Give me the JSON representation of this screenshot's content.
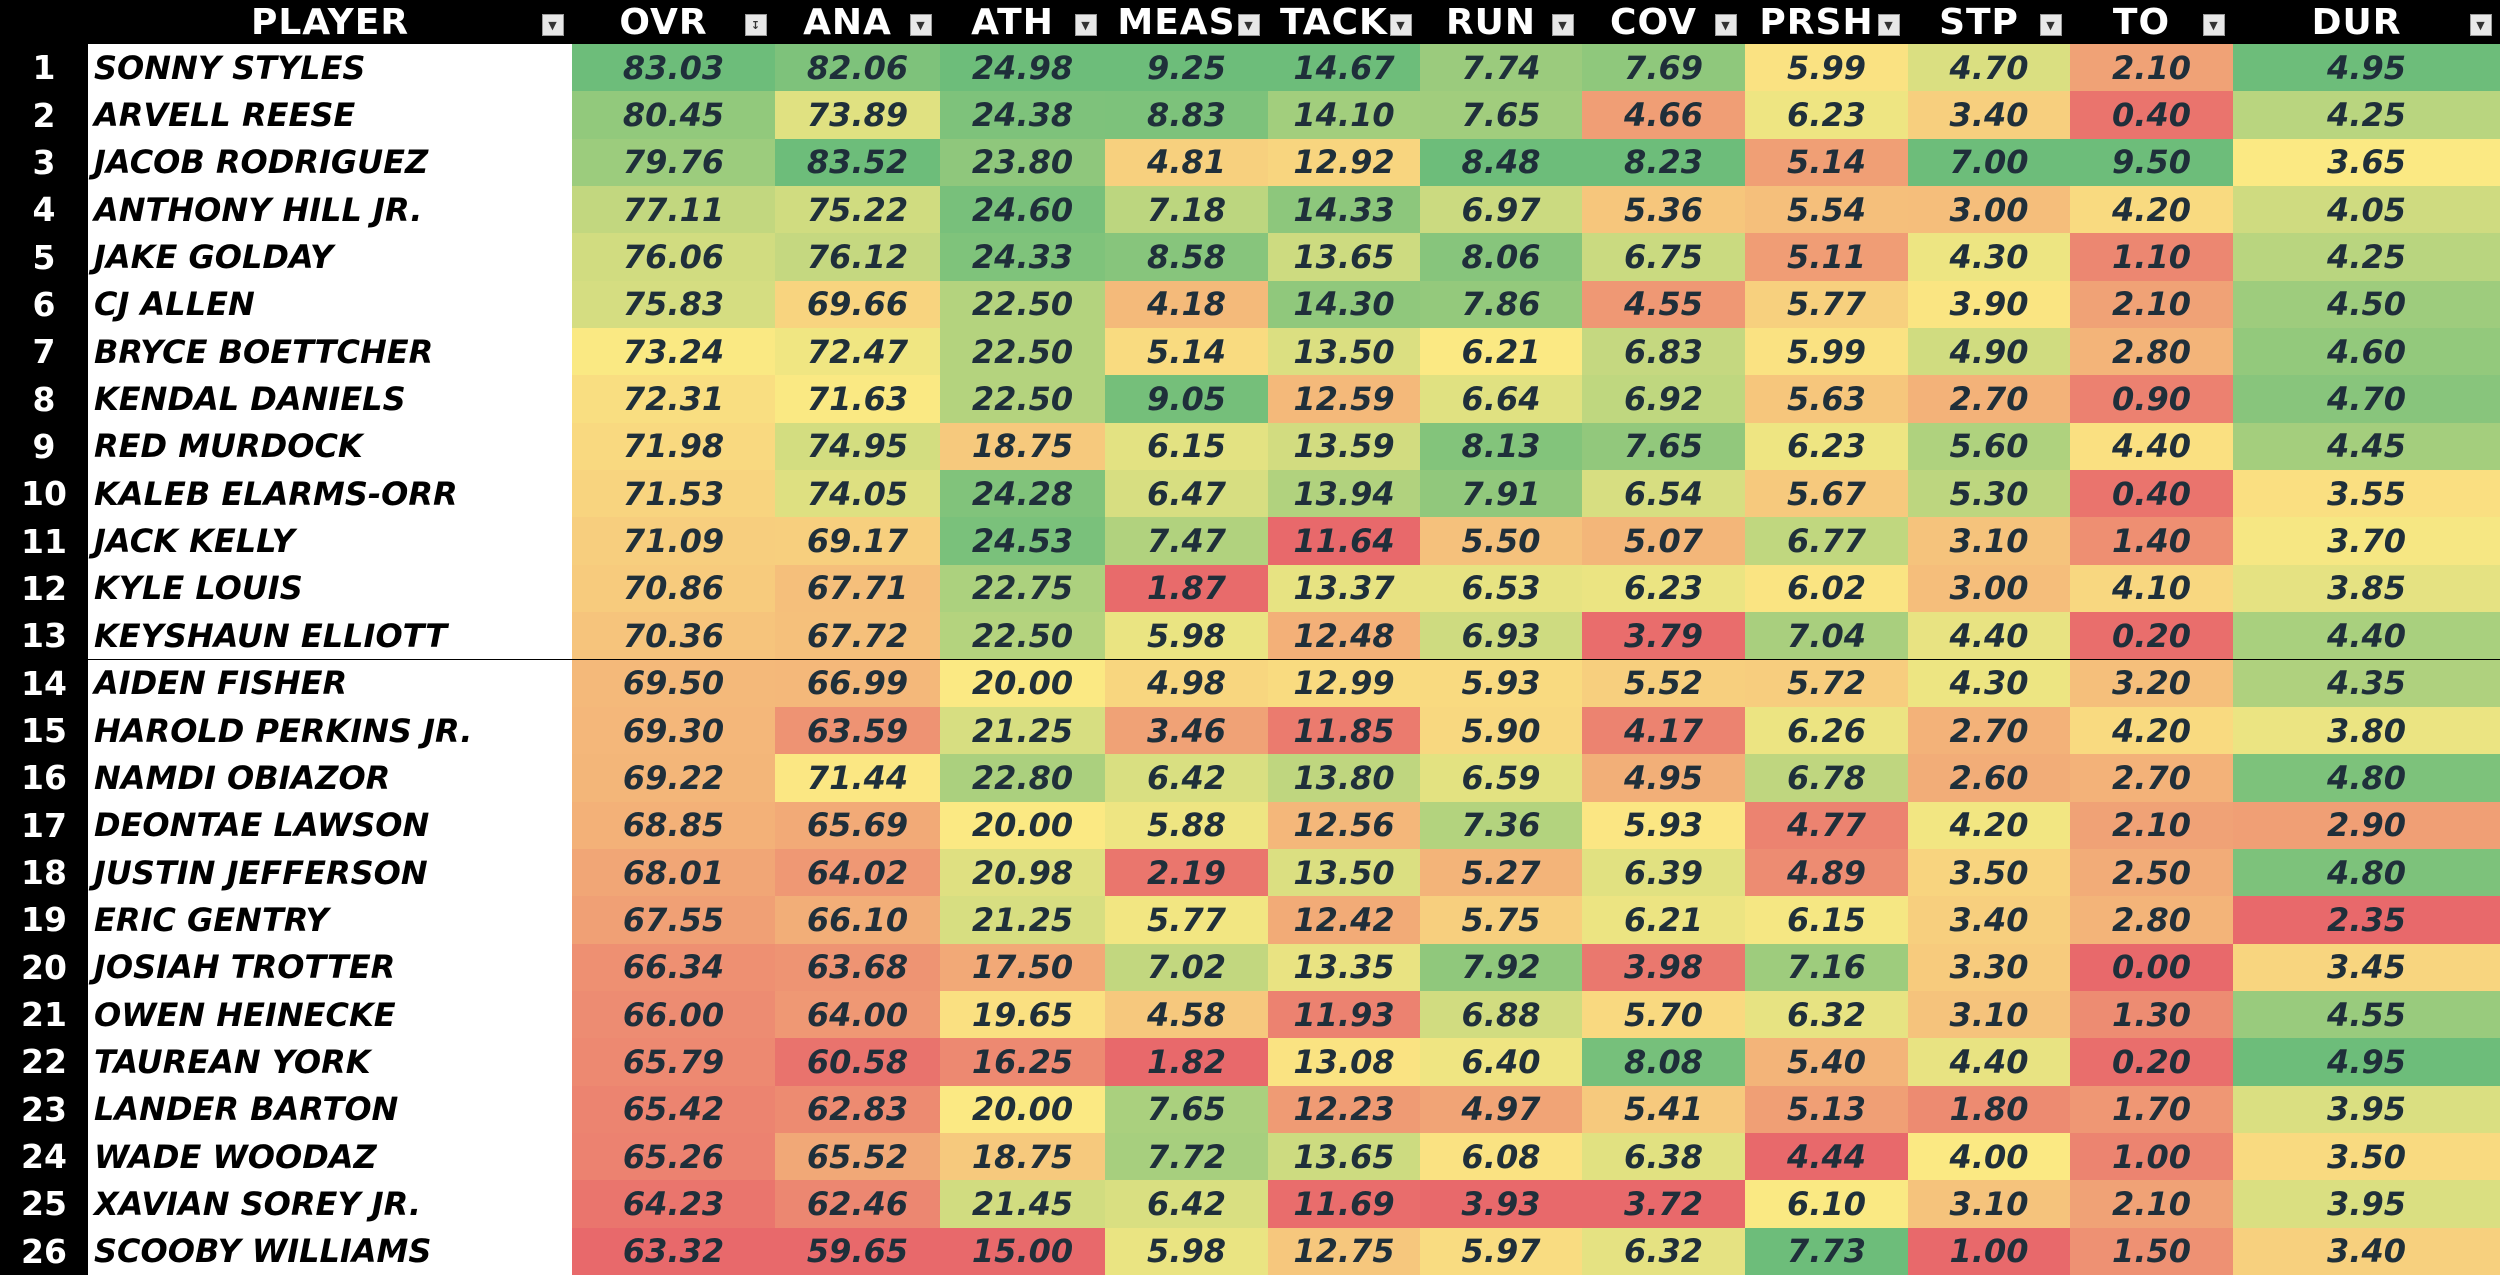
{
  "chart_data": {
    "type": "table",
    "columns": [
      "PLAYER",
      "OVR",
      "ANA",
      "ATH",
      "MEAS",
      "TACK",
      "RUN",
      "COV",
      "PRSH",
      "STP",
      "TO",
      "DUR"
    ],
    "rows": [
      {
        "rank": "1",
        "player": "SONNY STYLES",
        "values": [
          "83.03",
          "82.06",
          "24.98",
          "9.25",
          "14.67",
          "7.74",
          "7.69",
          "5.99",
          "4.70",
          "2.10",
          "4.95"
        ]
      },
      {
        "rank": "2",
        "player": "ARVELL REESE",
        "values": [
          "80.45",
          "73.89",
          "24.38",
          "8.83",
          "14.10",
          "7.65",
          "4.66",
          "6.23",
          "3.40",
          "0.40",
          "4.25"
        ]
      },
      {
        "rank": "3",
        "player": "JACOB RODRIGUEZ",
        "values": [
          "79.76",
          "83.52",
          "23.80",
          "4.81",
          "12.92",
          "8.48",
          "8.23",
          "5.14",
          "7.00",
          "9.50",
          "3.65"
        ]
      },
      {
        "rank": "4",
        "player": "ANTHONY HILL JR.",
        "values": [
          "77.11",
          "75.22",
          "24.60",
          "7.18",
          "14.33",
          "6.97",
          "5.36",
          "5.54",
          "3.00",
          "4.20",
          "4.05"
        ]
      },
      {
        "rank": "5",
        "player": "JAKE GOLDAY",
        "values": [
          "76.06",
          "76.12",
          "24.33",
          "8.58",
          "13.65",
          "8.06",
          "6.75",
          "5.11",
          "4.30",
          "1.10",
          "4.25"
        ]
      },
      {
        "rank": "6",
        "player": "CJ ALLEN",
        "values": [
          "75.83",
          "69.66",
          "22.50",
          "4.18",
          "14.30",
          "7.86",
          "4.55",
          "5.77",
          "3.90",
          "2.10",
          "4.50"
        ]
      },
      {
        "rank": "7",
        "player": "BRYCE BOETTCHER",
        "values": [
          "73.24",
          "72.47",
          "22.50",
          "5.14",
          "13.50",
          "6.21",
          "6.83",
          "5.99",
          "4.90",
          "2.80",
          "4.60"
        ]
      },
      {
        "rank": "8",
        "player": "KENDAL DANIELS",
        "values": [
          "72.31",
          "71.63",
          "22.50",
          "9.05",
          "12.59",
          "6.64",
          "6.92",
          "5.63",
          "2.70",
          "0.90",
          "4.70"
        ]
      },
      {
        "rank": "9",
        "player": "RED MURDOCK",
        "values": [
          "71.98",
          "74.95",
          "18.75",
          "6.15",
          "13.59",
          "8.13",
          "7.65",
          "6.23",
          "5.60",
          "4.40",
          "4.45"
        ]
      },
      {
        "rank": "10",
        "player": "KALEB ELARMS-ORR",
        "values": [
          "71.53",
          "74.05",
          "24.28",
          "6.47",
          "13.94",
          "7.91",
          "6.54",
          "5.67",
          "5.30",
          "0.40",
          "3.55"
        ]
      },
      {
        "rank": "11",
        "player": "JACK KELLY",
        "values": [
          "71.09",
          "69.17",
          "24.53",
          "7.47",
          "11.64",
          "5.50",
          "5.07",
          "6.77",
          "3.10",
          "1.40",
          "3.70"
        ]
      },
      {
        "rank": "12",
        "player": "KYLE LOUIS",
        "values": [
          "70.86",
          "67.71",
          "22.75",
          "1.87",
          "13.37",
          "6.53",
          "6.23",
          "6.02",
          "3.00",
          "4.10",
          "3.85"
        ]
      },
      {
        "rank": "13",
        "player": "KEYSHAUN ELLIOTT",
        "values": [
          "70.36",
          "67.72",
          "22.50",
          "5.98",
          "12.48",
          "6.93",
          "3.79",
          "7.04",
          "4.40",
          "0.20",
          "4.40"
        ]
      },
      {
        "rank": "14",
        "player": "AIDEN FISHER",
        "values": [
          "69.50",
          "66.99",
          "20.00",
          "4.98",
          "12.99",
          "5.93",
          "5.52",
          "5.72",
          "4.30",
          "3.20",
          "4.35"
        ]
      },
      {
        "rank": "15",
        "player": "HAROLD PERKINS JR.",
        "values": [
          "69.30",
          "63.59",
          "21.25",
          "3.46",
          "11.85",
          "5.90",
          "4.17",
          "6.26",
          "2.70",
          "4.20",
          "3.80"
        ]
      },
      {
        "rank": "16",
        "player": "NAMDI OBIAZOR",
        "values": [
          "69.22",
          "71.44",
          "22.80",
          "6.42",
          "13.80",
          "6.59",
          "4.95",
          "6.78",
          "2.60",
          "2.70",
          "4.80"
        ]
      },
      {
        "rank": "17",
        "player": "DEONTAE LAWSON",
        "values": [
          "68.85",
          "65.69",
          "20.00",
          "5.88",
          "12.56",
          "7.36",
          "5.93",
          "4.77",
          "4.20",
          "2.10",
          "2.90"
        ]
      },
      {
        "rank": "18",
        "player": "JUSTIN JEFFERSON",
        "values": [
          "68.01",
          "64.02",
          "20.98",
          "2.19",
          "13.50",
          "5.27",
          "6.39",
          "4.89",
          "3.50",
          "2.50",
          "4.80"
        ]
      },
      {
        "rank": "19",
        "player": "ERIC GENTRY",
        "values": [
          "67.55",
          "66.10",
          "21.25",
          "5.77",
          "12.42",
          "5.75",
          "6.21",
          "6.15",
          "3.40",
          "2.80",
          "2.35"
        ]
      },
      {
        "rank": "20",
        "player": "JOSIAH TROTTER",
        "values": [
          "66.34",
          "63.68",
          "17.50",
          "7.02",
          "13.35",
          "7.92",
          "3.98",
          "7.16",
          "3.30",
          "0.00",
          "3.45"
        ]
      },
      {
        "rank": "21",
        "player": "OWEN HEINECKE",
        "values": [
          "66.00",
          "64.00",
          "19.65",
          "4.58",
          "11.93",
          "6.88",
          "5.70",
          "6.32",
          "3.10",
          "1.30",
          "4.55"
        ]
      },
      {
        "rank": "22",
        "player": "TAUREAN YORK",
        "values": [
          "65.79",
          "60.58",
          "16.25",
          "1.82",
          "13.08",
          "6.40",
          "8.08",
          "5.40",
          "4.40",
          "0.20",
          "4.95"
        ]
      },
      {
        "rank": "23",
        "player": "LANDER BARTON",
        "values": [
          "65.42",
          "62.83",
          "20.00",
          "7.65",
          "12.23",
          "4.97",
          "5.41",
          "5.13",
          "1.80",
          "1.70",
          "3.95"
        ]
      },
      {
        "rank": "24",
        "player": "WADE WOODAZ",
        "values": [
          "65.26",
          "65.52",
          "18.75",
          "7.72",
          "13.65",
          "6.08",
          "6.38",
          "4.44",
          "4.00",
          "1.00",
          "3.50"
        ]
      },
      {
        "rank": "25",
        "player": "XAVIAN SOREY JR.",
        "values": [
          "64.23",
          "62.46",
          "21.45",
          "6.42",
          "11.69",
          "3.93",
          "3.72",
          "6.10",
          "3.10",
          "2.10",
          "3.95"
        ]
      },
      {
        "rank": "26",
        "player": "SCOOBY WILLIAMS",
        "values": [
          "63.32",
          "59.65",
          "15.00",
          "5.98",
          "12.75",
          "5.97",
          "6.32",
          "7.73",
          "1.00",
          "1.50",
          "3.40"
        ]
      }
    ],
    "color_scale": {
      "low": "#e8696b",
      "mid": "#fbe983",
      "high": "#6dbd7a"
    },
    "sorted_column": "OVR"
  }
}
